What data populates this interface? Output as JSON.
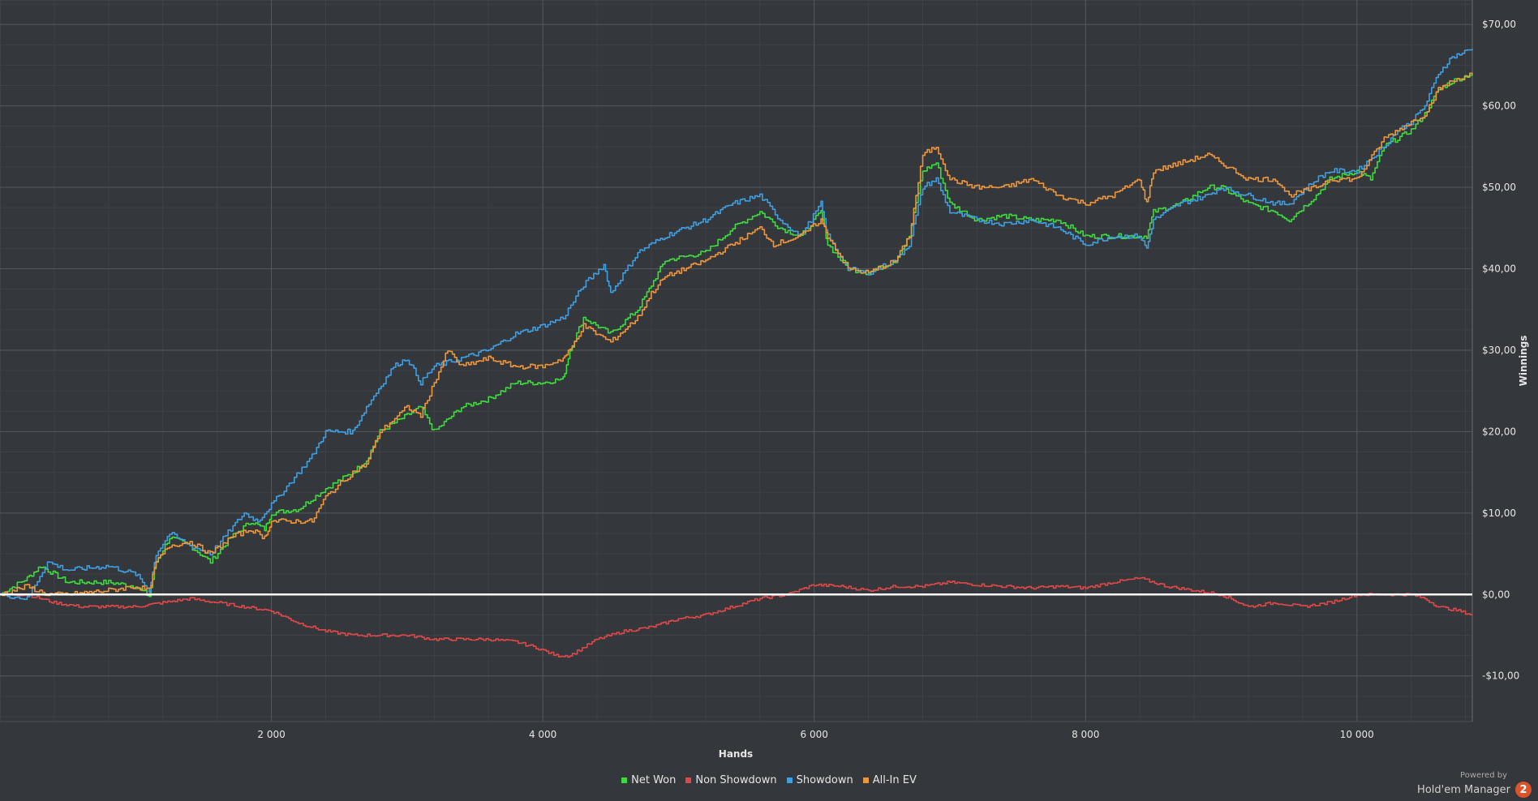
{
  "chart_data": {
    "type": "line",
    "xlabel": "Hands",
    "ylabel": "Winnings",
    "xlim": [
      0,
      10850
    ],
    "ylim": [
      -15.6,
      73
    ],
    "x_ticks": [
      2000,
      4000,
      6000,
      8000,
      10000
    ],
    "x_tick_labels": [
      "2 000",
      "4 000",
      "6 000",
      "8 000",
      "10 000"
    ],
    "y_ticks": [
      -10,
      0,
      10,
      20,
      30,
      40,
      50,
      60,
      70
    ],
    "y_tick_labels": [
      "-$10,00",
      "$0,00",
      "$10,00",
      "$20,00",
      "$30,00",
      "$40,00",
      "$50,00",
      "$60,00",
      "$70,00"
    ],
    "grid": true,
    "legend_position": "bottom-center",
    "series": [
      {
        "name": "Net Won",
        "color": "#3ddc3d",
        "points": [
          [
            0,
            0
          ],
          [
            200,
            2
          ],
          [
            300,
            3.5
          ],
          [
            500,
            1.5
          ],
          [
            800,
            1.5
          ],
          [
            1000,
            1
          ],
          [
            1100,
            -0.2
          ],
          [
            1150,
            4
          ],
          [
            1250,
            7
          ],
          [
            1400,
            6
          ],
          [
            1550,
            4
          ],
          [
            1700,
            7
          ],
          [
            1850,
            9
          ],
          [
            1950,
            8
          ],
          [
            2000,
            10
          ],
          [
            2200,
            10.5
          ],
          [
            2400,
            13
          ],
          [
            2600,
            15
          ],
          [
            2700,
            16.5
          ],
          [
            2800,
            20
          ],
          [
            3000,
            22
          ],
          [
            3100,
            23
          ],
          [
            3200,
            20
          ],
          [
            3400,
            23
          ],
          [
            3600,
            24
          ],
          [
            3800,
            26
          ],
          [
            4000,
            26
          ],
          [
            4150,
            26.5
          ],
          [
            4200,
            30
          ],
          [
            4300,
            34
          ],
          [
            4500,
            32
          ],
          [
            4700,
            35
          ],
          [
            4800,
            38
          ],
          [
            4900,
            41
          ],
          [
            5200,
            42
          ],
          [
            5400,
            45
          ],
          [
            5600,
            47
          ],
          [
            5750,
            45
          ],
          [
            5900,
            44
          ],
          [
            6050,
            47
          ],
          [
            6100,
            43
          ],
          [
            6250,
            40
          ],
          [
            6400,
            39.5
          ],
          [
            6600,
            41
          ],
          [
            6700,
            44
          ],
          [
            6800,
            52
          ],
          [
            6900,
            53
          ],
          [
            7000,
            48
          ],
          [
            7200,
            46
          ],
          [
            7400,
            46.5
          ],
          [
            7600,
            46
          ],
          [
            7800,
            46
          ],
          [
            8000,
            44
          ],
          [
            8100,
            44
          ],
          [
            8300,
            44
          ],
          [
            8450,
            44
          ],
          [
            8500,
            47
          ],
          [
            8700,
            48
          ],
          [
            8900,
            50
          ],
          [
            9000,
            50
          ],
          [
            9200,
            48
          ],
          [
            9400,
            47
          ],
          [
            9500,
            46
          ],
          [
            9700,
            49
          ],
          [
            9800,
            51
          ],
          [
            10000,
            52
          ],
          [
            10100,
            51
          ],
          [
            10200,
            55
          ],
          [
            10300,
            56
          ],
          [
            10400,
            57
          ],
          [
            10500,
            59
          ],
          [
            10600,
            62
          ],
          [
            10700,
            63
          ],
          [
            10850,
            64
          ]
        ]
      },
      {
        "name": "Non Showdown",
        "color": "#e04848",
        "points": [
          [
            0,
            0
          ],
          [
            200,
            0
          ],
          [
            400,
            -1
          ],
          [
            600,
            -1.5
          ],
          [
            800,
            -1.5
          ],
          [
            1000,
            -1.5
          ],
          [
            1200,
            -1
          ],
          [
            1400,
            -0.5
          ],
          [
            1600,
            -1
          ],
          [
            1800,
            -1.5
          ],
          [
            2000,
            -2
          ],
          [
            2200,
            -3.5
          ],
          [
            2400,
            -4.5
          ],
          [
            2600,
            -5
          ],
          [
            2800,
            -5
          ],
          [
            3000,
            -5
          ],
          [
            3200,
            -5.5
          ],
          [
            3400,
            -5.5
          ],
          [
            3600,
            -5.5
          ],
          [
            3800,
            -5.8
          ],
          [
            3950,
            -6.5
          ],
          [
            4100,
            -7.5
          ],
          [
            4200,
            -7.5
          ],
          [
            4400,
            -5.5
          ],
          [
            4600,
            -4.5
          ],
          [
            4800,
            -4
          ],
          [
            5000,
            -3
          ],
          [
            5200,
            -2.5
          ],
          [
            5400,
            -1.5
          ],
          [
            5600,
            -0.5
          ],
          [
            5800,
            0
          ],
          [
            6000,
            1.2
          ],
          [
            6200,
            1
          ],
          [
            6400,
            0.5
          ],
          [
            6600,
            1
          ],
          [
            6800,
            1
          ],
          [
            7000,
            1.5
          ],
          [
            7200,
            1.2
          ],
          [
            7400,
            1
          ],
          [
            7600,
            0.8
          ],
          [
            7800,
            1
          ],
          [
            8000,
            0.8
          ],
          [
            8200,
            1.5
          ],
          [
            8400,
            2
          ],
          [
            8600,
            1
          ],
          [
            8800,
            0.5
          ],
          [
            9000,
            0
          ],
          [
            9200,
            -1.5
          ],
          [
            9400,
            -1
          ],
          [
            9600,
            -1.5
          ],
          [
            9800,
            -1
          ],
          [
            10000,
            0
          ],
          [
            10200,
            0
          ],
          [
            10400,
            0
          ],
          [
            10500,
            -0.5
          ],
          [
            10600,
            -1.5
          ],
          [
            10750,
            -2
          ],
          [
            10850,
            -2.5
          ]
        ]
      },
      {
        "name": "Showdown",
        "color": "#3f9fe2",
        "points": [
          [
            0,
            0
          ],
          [
            200,
            -0.5
          ],
          [
            350,
            4
          ],
          [
            500,
            3
          ],
          [
            800,
            3.5
          ],
          [
            1000,
            2.5
          ],
          [
            1100,
            0.5
          ],
          [
            1150,
            5
          ],
          [
            1250,
            7.5
          ],
          [
            1400,
            6
          ],
          [
            1550,
            5
          ],
          [
            1700,
            8
          ],
          [
            1800,
            10
          ],
          [
            1900,
            9
          ],
          [
            2000,
            11
          ],
          [
            2150,
            14
          ],
          [
            2300,
            17
          ],
          [
            2400,
            20
          ],
          [
            2600,
            20
          ],
          [
            2700,
            23
          ],
          [
            2900,
            28
          ],
          [
            3000,
            29
          ],
          [
            3100,
            26
          ],
          [
            3200,
            28
          ],
          [
            3400,
            29
          ],
          [
            3600,
            30
          ],
          [
            3800,
            32
          ],
          [
            4000,
            33
          ],
          [
            4150,
            34
          ],
          [
            4300,
            38
          ],
          [
            4450,
            40.5
          ],
          [
            4500,
            37
          ],
          [
            4700,
            42
          ],
          [
            4800,
            43
          ],
          [
            4900,
            44
          ],
          [
            5200,
            46
          ],
          [
            5400,
            48
          ],
          [
            5600,
            49
          ],
          [
            5750,
            46
          ],
          [
            5900,
            44
          ],
          [
            6050,
            48
          ],
          [
            6100,
            44
          ],
          [
            6250,
            40
          ],
          [
            6400,
            39.5
          ],
          [
            6600,
            41
          ],
          [
            6700,
            43
          ],
          [
            6800,
            50
          ],
          [
            6900,
            51
          ],
          [
            7000,
            47
          ],
          [
            7200,
            46
          ],
          [
            7400,
            45.5
          ],
          [
            7600,
            46
          ],
          [
            7800,
            45
          ],
          [
            8000,
            43
          ],
          [
            8200,
            44
          ],
          [
            8400,
            44
          ],
          [
            8450,
            42.5
          ],
          [
            8500,
            46
          ],
          [
            8700,
            48
          ],
          [
            8900,
            49
          ],
          [
            9000,
            50
          ],
          [
            9200,
            49
          ],
          [
            9400,
            48
          ],
          [
            9500,
            48
          ],
          [
            9700,
            51
          ],
          [
            9800,
            52
          ],
          [
            10000,
            52
          ],
          [
            10200,
            55
          ],
          [
            10300,
            57
          ],
          [
            10400,
            58
          ],
          [
            10500,
            60
          ],
          [
            10600,
            64
          ],
          [
            10700,
            66
          ],
          [
            10850,
            67
          ]
        ]
      },
      {
        "name": "All-In EV",
        "color": "#f0963a",
        "points": [
          [
            0,
            0
          ],
          [
            200,
            1
          ],
          [
            350,
            0
          ],
          [
            500,
            0
          ],
          [
            800,
            0.5
          ],
          [
            1000,
            1
          ],
          [
            1100,
            0.5
          ],
          [
            1150,
            4
          ],
          [
            1250,
            6
          ],
          [
            1400,
            6.5
          ],
          [
            1550,
            5
          ],
          [
            1700,
            7
          ],
          [
            1850,
            8
          ],
          [
            1950,
            7
          ],
          [
            2000,
            9
          ],
          [
            2200,
            9
          ],
          [
            2300,
            9
          ],
          [
            2400,
            12
          ],
          [
            2600,
            15
          ],
          [
            2700,
            16
          ],
          [
            2800,
            20
          ],
          [
            3000,
            23
          ],
          [
            3100,
            22
          ],
          [
            3200,
            26
          ],
          [
            3300,
            30
          ],
          [
            3400,
            28
          ],
          [
            3600,
            29
          ],
          [
            3800,
            28
          ],
          [
            4000,
            28
          ],
          [
            4150,
            29
          ],
          [
            4200,
            30
          ],
          [
            4300,
            33
          ],
          [
            4500,
            31
          ],
          [
            4700,
            34
          ],
          [
            4800,
            37
          ],
          [
            4900,
            39
          ],
          [
            5200,
            41
          ],
          [
            5400,
            43
          ],
          [
            5600,
            45
          ],
          [
            5700,
            43
          ],
          [
            5900,
            44
          ],
          [
            6050,
            46
          ],
          [
            6100,
            44
          ],
          [
            6250,
            40
          ],
          [
            6400,
            39.5
          ],
          [
            6600,
            41
          ],
          [
            6700,
            44
          ],
          [
            6800,
            54
          ],
          [
            6900,
            55
          ],
          [
            7000,
            51
          ],
          [
            7200,
            50
          ],
          [
            7400,
            50
          ],
          [
            7600,
            51
          ],
          [
            7800,
            49
          ],
          [
            8000,
            48
          ],
          [
            8200,
            49
          ],
          [
            8400,
            51
          ],
          [
            8450,
            48
          ],
          [
            8500,
            52
          ],
          [
            8700,
            53
          ],
          [
            8900,
            54
          ],
          [
            9000,
            53
          ],
          [
            9200,
            51
          ],
          [
            9400,
            51
          ],
          [
            9500,
            49
          ],
          [
            9700,
            50
          ],
          [
            9800,
            51
          ],
          [
            10000,
            51
          ],
          [
            10200,
            56
          ],
          [
            10300,
            57
          ],
          [
            10400,
            58
          ],
          [
            10500,
            59
          ],
          [
            10600,
            62
          ],
          [
            10700,
            63
          ],
          [
            10850,
            64
          ]
        ]
      }
    ]
  },
  "branding": {
    "powered_by": "Powered by",
    "product": "Hold'em Manager",
    "logo_glyph": "2"
  }
}
